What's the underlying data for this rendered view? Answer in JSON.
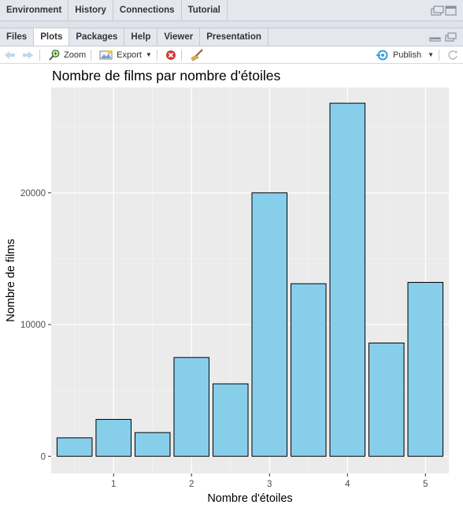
{
  "top_pane": {
    "tabs": [
      {
        "label": "Environment"
      },
      {
        "label": "History"
      },
      {
        "label": "Connections"
      },
      {
        "label": "Tutorial"
      }
    ]
  },
  "bottom_pane": {
    "tabs": [
      {
        "label": "Files"
      },
      {
        "label": "Plots"
      },
      {
        "label": "Packages"
      },
      {
        "label": "Help"
      },
      {
        "label": "Viewer"
      },
      {
        "label": "Presentation"
      }
    ],
    "active_tab": "Plots"
  },
  "toolbar": {
    "zoom_label": "Zoom",
    "export_label": "Export",
    "publish_label": "Publish"
  },
  "chart_data": {
    "type": "bar",
    "title": "Nombre de films par nombre d'étoiles",
    "xlabel": "Nombre d'étoiles",
    "ylabel": "Nombre de films",
    "x": [
      0.5,
      1.0,
      1.5,
      2.0,
      2.5,
      3.0,
      3.5,
      4.0,
      4.5,
      5.0
    ],
    "values": [
      1400,
      2800,
      1800,
      7500,
      5500,
      20000,
      13100,
      26800,
      8600,
      13200
    ],
    "x_ticks": [
      "1",
      "2",
      "3",
      "4",
      "5"
    ],
    "y_ticks": [
      "0",
      "10000",
      "20000"
    ],
    "ylim": [
      -1300,
      28000
    ],
    "xlim": [
      0.2,
      5.3
    ],
    "bar_fill": "#87ceeb",
    "bar_stroke": "#000000",
    "panel_background": "#ebebeb",
    "grid": true
  }
}
